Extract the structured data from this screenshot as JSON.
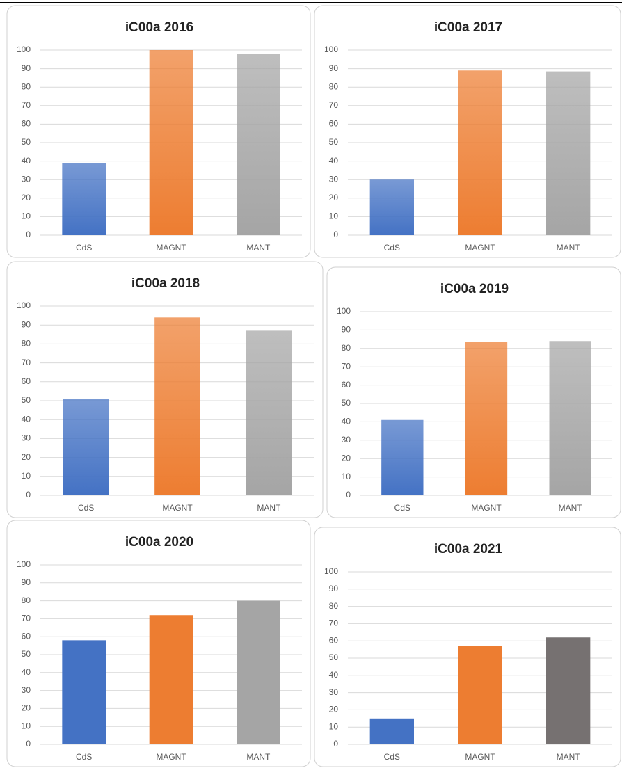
{
  "chart_data": [
    {
      "type": "bar",
      "title": "iC00a 2016",
      "categories": [
        "CdS",
        "MAGNT",
        "MANT"
      ],
      "values": [
        39,
        100,
        98
      ],
      "colors": [
        "#4472c4",
        "#ed7d31",
        "#a5a5a5"
      ],
      "gradient": true,
      "ylim": [
        0,
        100
      ],
      "yticks": [
        0,
        10,
        20,
        30,
        40,
        50,
        60,
        70,
        80,
        90,
        100
      ],
      "grid": true
    },
    {
      "type": "bar",
      "title": "iC00a 2017",
      "categories": [
        "CdS",
        "MAGNT",
        "MANT"
      ],
      "values": [
        30,
        89,
        88.5
      ],
      "colors": [
        "#4472c4",
        "#ed7d31",
        "#a5a5a5"
      ],
      "gradient": true,
      "ylim": [
        0,
        100
      ],
      "yticks": [
        0,
        10,
        20,
        30,
        40,
        50,
        60,
        70,
        80,
        90,
        100
      ],
      "grid": true
    },
    {
      "type": "bar",
      "title": "iC00a 2018",
      "categories": [
        "CdS",
        "MAGNT",
        "MANT"
      ],
      "values": [
        51,
        94,
        87
      ],
      "colors": [
        "#4472c4",
        "#ed7d31",
        "#a5a5a5"
      ],
      "gradient": true,
      "ylim": [
        0,
        100
      ],
      "yticks": [
        0,
        10,
        20,
        30,
        40,
        50,
        60,
        70,
        80,
        90,
        100
      ],
      "grid": true
    },
    {
      "type": "bar",
      "title": "iC00a 2019",
      "categories": [
        "CdS",
        "MAGNT",
        "MANT"
      ],
      "values": [
        41,
        83.5,
        84
      ],
      "colors": [
        "#4472c4",
        "#ed7d31",
        "#a5a5a5"
      ],
      "gradient": true,
      "ylim": [
        0,
        100
      ],
      "yticks": [
        0,
        10,
        20,
        30,
        40,
        50,
        60,
        70,
        80,
        90,
        100
      ],
      "grid": true
    },
    {
      "type": "bar",
      "title": "iC00a 2020",
      "categories": [
        "CdS",
        "MAGNT",
        "MANT"
      ],
      "values": [
        58,
        72,
        80
      ],
      "colors": [
        "#4472c4",
        "#ed7d31",
        "#a5a5a5"
      ],
      "gradient": false,
      "ylim": [
        0,
        100
      ],
      "yticks": [
        0,
        10,
        20,
        30,
        40,
        50,
        60,
        70,
        80,
        90,
        100
      ],
      "grid": true
    },
    {
      "type": "bar",
      "title": "iC00a 2021",
      "categories": [
        "CdS",
        "MAGNT",
        "MANT"
      ],
      "values": [
        15,
        57,
        62
      ],
      "colors": [
        "#4472c4",
        "#ed7d31",
        "#767171"
      ],
      "gradient": false,
      "ylim": [
        0,
        100
      ],
      "yticks": [
        0,
        10,
        20,
        30,
        40,
        50,
        60,
        70,
        80,
        90,
        100
      ],
      "grid": true
    }
  ]
}
